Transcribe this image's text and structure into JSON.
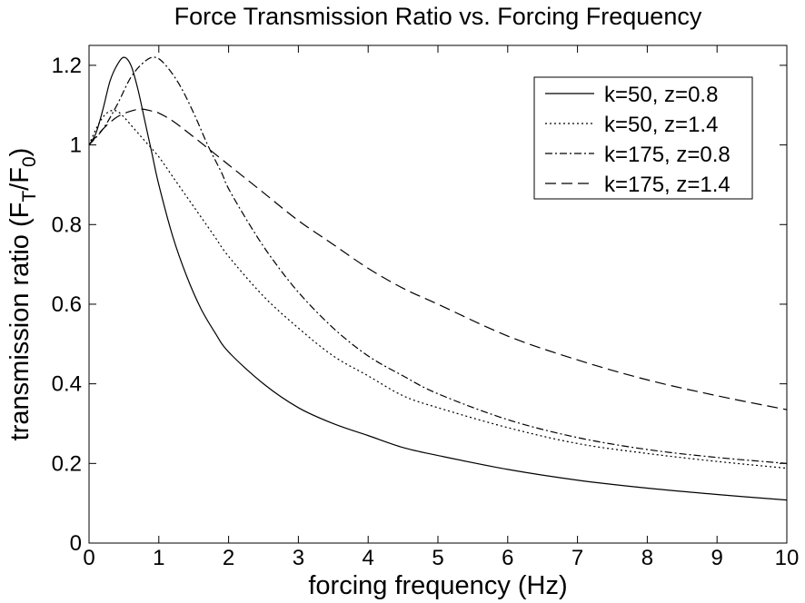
{
  "chart_data": {
    "type": "line",
    "title": "Force Transmission Ratio vs. Forcing Frequency",
    "xlabel": "forcing frequency (Hz)",
    "ylabel": {
      "main": "transmission ratio (F",
      "sub1": "T",
      "mid": "/F",
      "sub2": "0",
      "end": ")"
    },
    "xlim": [
      0,
      10
    ],
    "ylim": [
      0,
      1.25
    ],
    "xticks": [
      "0",
      "1",
      "2",
      "3",
      "4",
      "5",
      "6",
      "7",
      "8",
      "9",
      "10"
    ],
    "yticks": [
      "0",
      "0.2",
      "0.4",
      "0.6",
      "0.8",
      "1",
      "1.2"
    ],
    "ytick_values": [
      0,
      0.2,
      0.4,
      0.6,
      0.8,
      1.0,
      1.2
    ],
    "grid": false,
    "legend_position": "top-right",
    "series": [
      {
        "name": "k=50, z=0.8",
        "style": "solid",
        "x": [
          0,
          0.1,
          0.2,
          0.3,
          0.4,
          0.5,
          0.6,
          0.7,
          0.8,
          0.9,
          1.0,
          1.2,
          1.4,
          1.6,
          1.8,
          2.0,
          2.5,
          3.0,
          3.5,
          4.0,
          4.5,
          5.0,
          6.0,
          7.0,
          8.0,
          9.0,
          10.0
        ],
        "y": [
          1.0,
          1.03,
          1.09,
          1.16,
          1.2,
          1.22,
          1.2,
          1.14,
          1.06,
          0.98,
          0.9,
          0.77,
          0.67,
          0.59,
          0.53,
          0.48,
          0.4,
          0.34,
          0.3,
          0.27,
          0.24,
          0.22,
          0.185,
          0.158,
          0.138,
          0.122,
          0.108
        ]
      },
      {
        "name": "k=50, z=1.4",
        "style": "dotted",
        "x": [
          0,
          0.1,
          0.2,
          0.3,
          0.4,
          0.5,
          0.6,
          0.7,
          0.8,
          1.0,
          1.2,
          1.4,
          1.6,
          1.8,
          2.0,
          2.5,
          3.0,
          3.5,
          4.0,
          4.5,
          5.0,
          6.0,
          7.0,
          8.0,
          9.0,
          10.0
        ],
        "y": [
          1.0,
          1.04,
          1.07,
          1.085,
          1.085,
          1.07,
          1.05,
          1.03,
          1.01,
          0.97,
          0.92,
          0.87,
          0.82,
          0.77,
          0.72,
          0.62,
          0.54,
          0.47,
          0.42,
          0.37,
          0.34,
          0.29,
          0.25,
          0.225,
          0.205,
          0.188
        ]
      },
      {
        "name": "k=175, z=0.8",
        "style": "dashdot",
        "x": [
          0,
          0.2,
          0.4,
          0.6,
          0.8,
          0.95,
          1.1,
          1.3,
          1.5,
          1.7,
          1.9,
          2.0,
          2.3,
          2.6,
          3.0,
          3.5,
          4.0,
          4.5,
          5.0,
          6.0,
          7.0,
          8.0,
          9.0,
          10.0
        ],
        "y": [
          1.0,
          1.04,
          1.1,
          1.17,
          1.21,
          1.22,
          1.2,
          1.15,
          1.08,
          1.0,
          0.93,
          0.89,
          0.8,
          0.72,
          0.63,
          0.54,
          0.47,
          0.42,
          0.375,
          0.31,
          0.265,
          0.235,
          0.215,
          0.2
        ]
      },
      {
        "name": "k=175, z=1.4",
        "style": "dashed",
        "x": [
          0,
          0.2,
          0.4,
          0.6,
          0.75,
          0.9,
          1.0,
          1.2,
          1.5,
          2.0,
          2.5,
          3.0,
          3.5,
          4.0,
          4.5,
          5.0,
          6.0,
          7.0,
          8.0,
          9.0,
          10.0
        ],
        "y": [
          1.0,
          1.04,
          1.07,
          1.085,
          1.09,
          1.085,
          1.08,
          1.06,
          1.02,
          0.95,
          0.88,
          0.81,
          0.75,
          0.69,
          0.64,
          0.6,
          0.52,
          0.46,
          0.41,
          0.37,
          0.335
        ]
      }
    ]
  }
}
